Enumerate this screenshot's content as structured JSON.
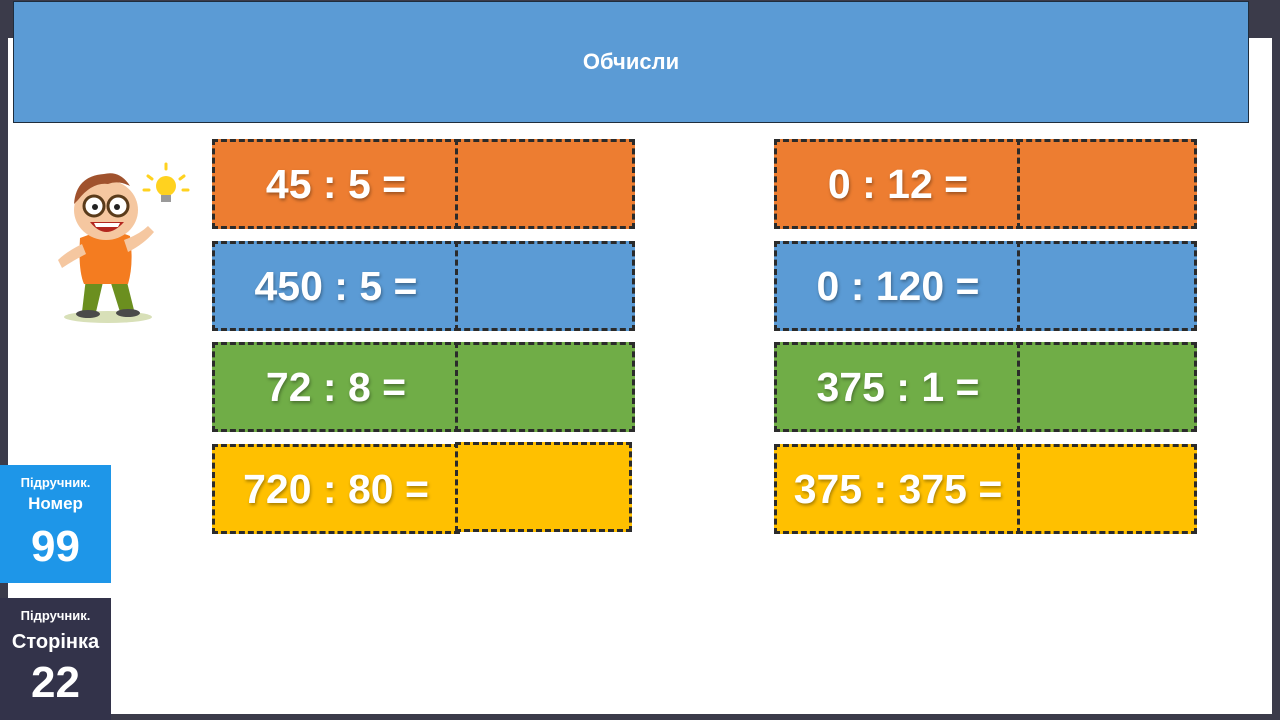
{
  "header": {
    "title": "Обчисли"
  },
  "left_column": [
    {
      "expression": "45 : 5 =",
      "color": "#ed7d31"
    },
    {
      "expression": "450 : 5 =",
      "color": "#5b9bd5"
    },
    {
      "expression": "72 : 8 =",
      "color": "#70ad47"
    },
    {
      "expression": "720 : 80 =",
      "color": "#ffc000"
    }
  ],
  "right_column": [
    {
      "expression": "0 : 12 =",
      "color": "#ed7d31"
    },
    {
      "expression": "0 : 120 =",
      "color": "#5b9bd5"
    },
    {
      "expression": "375 : 1 =",
      "color": "#70ad47"
    },
    {
      "expression": "375 : 375 =",
      "color": "#ffc000"
    }
  ],
  "badge_number": {
    "label": "Підручник.",
    "sublabel": "Номер",
    "value": "99"
  },
  "badge_page": {
    "label": "Підручник.",
    "sublabel": "Сторінка",
    "value": "22"
  }
}
